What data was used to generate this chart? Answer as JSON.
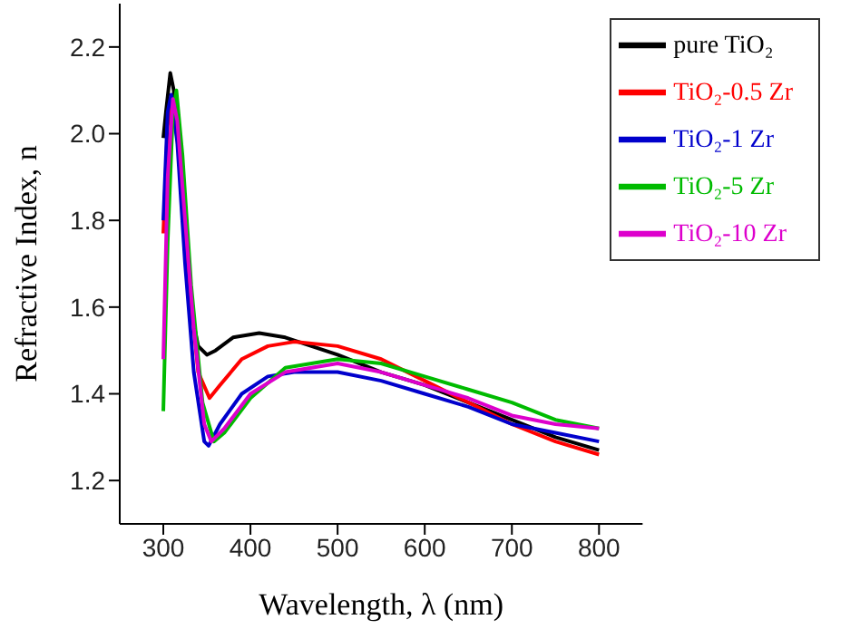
{
  "chart_data": {
    "type": "line",
    "xlabel": "Wavelength, λ (nm)",
    "ylabel": "Refractive Index, n",
    "xlim": [
      250,
      850
    ],
    "xticks": [
      300,
      400,
      500,
      600,
      700,
      800
    ],
    "ylim": [
      1.1,
      2.3
    ],
    "yticks": [
      1.2,
      1.4,
      1.6,
      1.8,
      {
        "value": 2,
        "label": "2.0"
      },
      2.2
    ],
    "grid": false,
    "legend": "top right",
    "marker": "none",
    "line_style": "solid",
    "series": [
      {
        "name": "pure TiO₂",
        "color": "#000000",
        "x": [
          300,
          303,
          308,
          312,
          318,
          325,
          333,
          340,
          350,
          360,
          380,
          410,
          440,
          470,
          500,
          550,
          600,
          650,
          700,
          750,
          800
        ],
        "values": [
          1.99,
          2.05,
          2.14,
          2.1,
          1.95,
          1.75,
          1.58,
          1.51,
          1.49,
          1.5,
          1.53,
          1.54,
          1.53,
          1.51,
          1.49,
          1.45,
          1.42,
          1.38,
          1.34,
          1.3,
          1.27
        ]
      },
      {
        "name": "TiO₂-0.5 Zr",
        "color": "#ff0000",
        "x": [
          300,
          305,
          311,
          318,
          328,
          340,
          353,
          365,
          390,
          420,
          450,
          500,
          550,
          600,
          650,
          700,
          750,
          800
        ],
        "values": [
          1.77,
          2.02,
          2.08,
          1.95,
          1.7,
          1.45,
          1.39,
          1.42,
          1.48,
          1.51,
          1.52,
          1.51,
          1.48,
          1.43,
          1.38,
          1.33,
          1.29,
          1.26
        ]
      },
      {
        "name": "TiO₂-1 Zr",
        "color": "#0000cc",
        "x": [
          300,
          305,
          309,
          316,
          325,
          335,
          347,
          352,
          365,
          390,
          420,
          450,
          500,
          550,
          600,
          650,
          700,
          750,
          800
        ],
        "values": [
          1.8,
          2.05,
          2.09,
          1.98,
          1.7,
          1.45,
          1.29,
          1.28,
          1.33,
          1.4,
          1.44,
          1.45,
          1.45,
          1.43,
          1.4,
          1.37,
          1.33,
          1.31,
          1.29
        ]
      },
      {
        "name": "TiO₂-5 Zr",
        "color": "#00bb00",
        "x": [
          300,
          305,
          311,
          315,
          322,
          332,
          345,
          358,
          370,
          400,
          440,
          500,
          550,
          600,
          650,
          700,
          750,
          800
        ],
        "values": [
          1.36,
          1.75,
          2.05,
          2.1,
          1.95,
          1.65,
          1.38,
          1.29,
          1.31,
          1.39,
          1.46,
          1.48,
          1.47,
          1.44,
          1.41,
          1.38,
          1.34,
          1.32
        ]
      },
      {
        "name": "TiO₂-10 Zr",
        "color": "#dd00cc",
        "x": [
          300,
          305,
          311,
          316,
          325,
          335,
          347,
          355,
          370,
          400,
          440,
          500,
          550,
          600,
          650,
          700,
          750,
          800
        ],
        "values": [
          1.48,
          1.9,
          2.08,
          2.03,
          1.8,
          1.55,
          1.33,
          1.29,
          1.32,
          1.4,
          1.45,
          1.47,
          1.45,
          1.42,
          1.39,
          1.35,
          1.33,
          1.32
        ]
      }
    ]
  }
}
